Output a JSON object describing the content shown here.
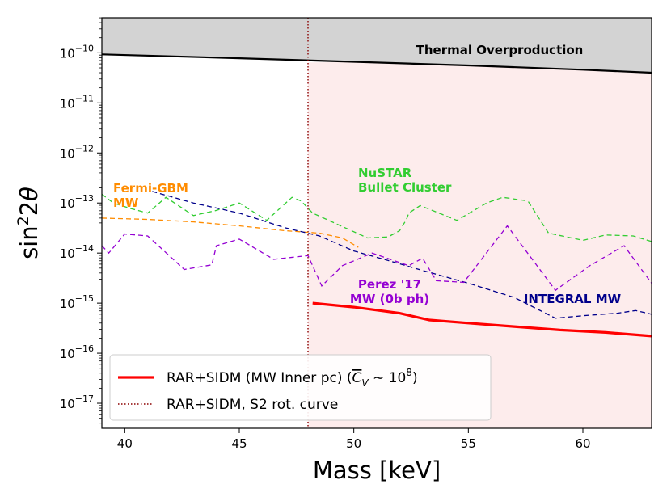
{
  "chart_data": {
    "type": "line",
    "xlabel": "Mass [keV]",
    "ylabel": "sin²2θ",
    "xlim": [
      39,
      63
    ],
    "ylim_log10": [
      -17.5,
      -9.3
    ],
    "x_ticks": [
      {
        "value": 40,
        "label": "40"
      },
      {
        "value": 45,
        "label": "45"
      },
      {
        "value": 50,
        "label": "50"
      },
      {
        "value": 55,
        "label": "55"
      },
      {
        "value": 60,
        "label": "60"
      }
    ],
    "y_ticks": [
      {
        "exp": -10,
        "base": "10",
        "sup": "−10"
      },
      {
        "exp": -11,
        "base": "10",
        "sup": "−11"
      },
      {
        "exp": -12,
        "base": "10",
        "sup": "−12"
      },
      {
        "exp": -13,
        "base": "10",
        "sup": "−13"
      },
      {
        "exp": -14,
        "base": "10",
        "sup": "−14"
      },
      {
        "exp": -15,
        "base": "10",
        "sup": "−15"
      },
      {
        "exp": -16,
        "base": "10",
        "sup": "−16"
      },
      {
        "exp": -17,
        "base": "10",
        "sup": "−17"
      }
    ],
    "regions": [
      {
        "name": "thermal-overproduction",
        "fill": "#d3d3d3",
        "label": "Thermal Overproduction",
        "label_color": "#000000"
      },
      {
        "name": "allowed-region",
        "fill": "#fdecec",
        "x_from": 48
      }
    ],
    "boundary_line": {
      "name": "thermal-boundary",
      "color": "#000000",
      "points": [
        [
          39,
          9.3e-11
        ],
        [
          45,
          7.8e-11
        ],
        [
          50,
          6.6e-11
        ],
        [
          55,
          5.6e-11
        ],
        [
          60,
          4.6e-11
        ],
        [
          63,
          4e-11
        ]
      ]
    },
    "series": [
      {
        "name": "Fermi-GBM MW",
        "color": "#ff8c00",
        "dash": "6,4",
        "points": [
          [
            39,
            5e-14
          ],
          [
            41,
            4.7e-14
          ],
          [
            43,
            4.2e-14
          ],
          [
            45,
            3.5e-14
          ],
          [
            47,
            2.8e-14
          ],
          [
            48.5,
            2.5e-14
          ],
          [
            49.5,
            2e-14
          ],
          [
            50.2,
            1.3e-14
          ]
        ]
      },
      {
        "name": "NuSTAR Bullet Cluster",
        "color": "#32cd32",
        "dash": "6,4",
        "points": [
          [
            39,
            1.5e-13
          ],
          [
            39.5,
            1e-13
          ],
          [
            40.2,
            7.9e-14
          ],
          [
            41,
            6.3e-14
          ],
          [
            41.8,
            1.3e-13
          ],
          [
            43,
            5.6e-14
          ],
          [
            44,
            7.1e-14
          ],
          [
            45,
            1e-13
          ],
          [
            46.2,
            4.5e-14
          ],
          [
            47.3,
            1.3e-13
          ],
          [
            47.7,
            1.1e-13
          ],
          [
            48.2,
            6.3e-14
          ],
          [
            50.6,
            2e-14
          ],
          [
            51.5,
            2.1e-14
          ],
          [
            52,
            2.8e-14
          ],
          [
            52.3,
            4.7e-14
          ],
          [
            52.4,
            6.3e-14
          ],
          [
            52.9,
            8.9e-14
          ],
          [
            54.5,
            4.5e-14
          ],
          [
            55.8,
            1e-13
          ],
          [
            56.5,
            1.3e-13
          ],
          [
            57.6,
            1.1e-13
          ],
          [
            58.5,
            2.5e-14
          ],
          [
            60,
            1.8e-14
          ],
          [
            61,
            2.3e-14
          ],
          [
            62.2,
            2.2e-14
          ],
          [
            63,
            1.7e-14
          ]
        ]
      },
      {
        "name": "INTEGRAL MW",
        "color": "#00008b",
        "dash": "6,4",
        "points": [
          [
            41.2,
            1.7e-13
          ],
          [
            43,
            1e-13
          ],
          [
            45,
            6.3e-14
          ],
          [
            47,
            3.2e-14
          ],
          [
            48.5,
            2.2e-14
          ],
          [
            50,
            1.1e-14
          ],
          [
            51.5,
            7.1e-15
          ],
          [
            53,
            4.5e-15
          ],
          [
            55,
            2.5e-15
          ],
          [
            57,
            1.3e-15
          ],
          [
            58.8,
            5e-16
          ],
          [
            60,
            5.6e-16
          ],
          [
            61.5,
            6.3e-16
          ],
          [
            62.3,
            7.1e-16
          ],
          [
            63,
            6e-16
          ]
        ]
      },
      {
        "name": "Perez '17 MW (0b ph)",
        "color": "#9400d3",
        "dash": "6,4",
        "points": [
          [
            39,
            1.4e-14
          ],
          [
            39.3,
            1e-14
          ],
          [
            40,
            2.4e-14
          ],
          [
            41,
            2.2e-14
          ],
          [
            42.6,
            4.7e-15
          ],
          [
            43.8,
            5.8e-15
          ],
          [
            44,
            1.4e-14
          ],
          [
            45,
            1.9e-14
          ],
          [
            46.5,
            7.5e-15
          ],
          [
            48,
            8.9e-15
          ],
          [
            48.6,
            2.2e-15
          ],
          [
            49.5,
            5.6e-15
          ],
          [
            50.8,
            1e-14
          ],
          [
            52.4,
            5.6e-15
          ],
          [
            53,
            7.9e-15
          ],
          [
            53.6,
            2.8e-15
          ],
          [
            54.8,
            2.6e-15
          ],
          [
            56.7,
            3.5e-14
          ],
          [
            58.8,
            1.8e-15
          ],
          [
            60.3,
            5.6e-15
          ],
          [
            61.8,
            1.4e-14
          ],
          [
            63,
            2.5e-15
          ]
        ]
      },
      {
        "name": "RAR+SIDM (MW Inner pc)",
        "color": "#ff0000",
        "dash": "",
        "width": 3.2,
        "points": [
          [
            48.2,
            1e-15
          ],
          [
            50,
            8.3e-16
          ],
          [
            52,
            6.3e-16
          ],
          [
            53.3,
            4.6e-16
          ],
          [
            55,
            4e-16
          ],
          [
            57,
            3.4e-16
          ],
          [
            59,
            2.9e-16
          ],
          [
            61,
            2.6e-16
          ],
          [
            63,
            2.2e-16
          ]
        ]
      }
    ],
    "vlines": [
      {
        "name": "RAR+SIDM, S2 rot. curve",
        "x": 48,
        "color": "#8b0000",
        "dash": "1.5,2.5"
      }
    ],
    "annotations": [
      {
        "name": "thermal",
        "lines": [
          "Thermal Overproduction"
        ],
        "color": "#000000"
      },
      {
        "name": "fermi",
        "lines": [
          "Fermi-GBM",
          "MW"
        ],
        "color": "#ff8c00"
      },
      {
        "name": "nustar",
        "lines": [
          "NuSTAR",
          "Bullet Cluster"
        ],
        "color": "#32cd32"
      },
      {
        "name": "perez",
        "lines": [
          "Perez '17",
          "MW (0b ph)"
        ],
        "color": "#9400d3"
      },
      {
        "name": "integral",
        "lines": [
          "INTEGRAL MW"
        ],
        "color": "#00008b"
      }
    ],
    "legend": {
      "placement": "lower-left",
      "entries": [
        {
          "name": "legend-rar-sidm",
          "label": "RAR+SIDM (MW Inner pc) (",
          "math_c": "C",
          "math_sub": "V",
          "math_rest": " ∼ 10",
          "math_sup": "8",
          "math_close": ")",
          "color": "#ff0000",
          "style": "solid"
        },
        {
          "name": "legend-s2",
          "label": "RAR+SIDM, S2 rot. curve",
          "color": "#8b0000",
          "style": "dotted"
        }
      ]
    }
  }
}
